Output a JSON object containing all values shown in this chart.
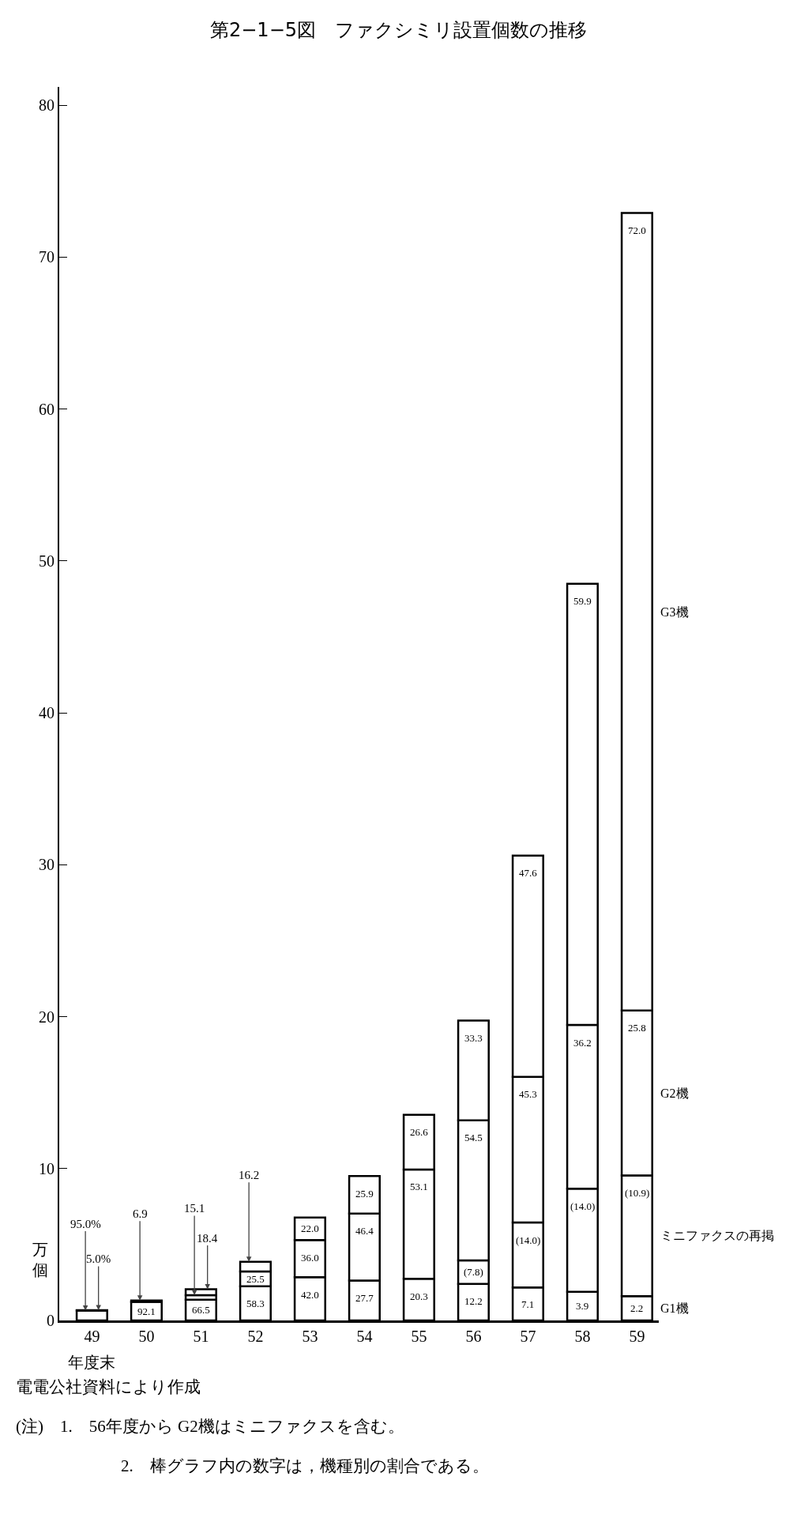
{
  "chart_data": {
    "type": "bar",
    "title": "第2−1−5図　ファクシミリ設置個数の推移",
    "xlabel": "年度末",
    "ylabel": "万個",
    "categories": [
      "49",
      "50",
      "51",
      "52",
      "53",
      "54",
      "55",
      "56",
      "57",
      "58",
      "59"
    ],
    "stacked": true,
    "ylim": [
      0,
      81.2
    ],
    "yticks": [
      0,
      10,
      20,
      30,
      40,
      50,
      60,
      70,
      80
    ],
    "series": [
      {
        "name": "G1機",
        "color": "#ffffff",
        "values": [
          0.65,
          1.22,
          1.36,
          2.25,
          2.85,
          2.63,
          2.75,
          2.41,
          2.17,
          1.89,
          1.6
        ]
      },
      {
        "name": "ミニファクスの再掲",
        "color": "#ffffff",
        "values": [
          null,
          null,
          null,
          null,
          null,
          null,
          null,
          1.54,
          4.28,
          6.79,
          7.95
        ]
      },
      {
        "name": "G2機",
        "color": "#ffffff",
        "values": [
          0.03,
          0.09,
          0.31,
          0.98,
          2.44,
          4.41,
          7.19,
          9.22,
          9.58,
          10.77,
          10.86
        ]
      },
      {
        "name": "G3機",
        "color": "#ffffff",
        "values": [
          null,
          null,
          0.38,
          0.63,
          1.49,
          2.46,
          3.6,
          6.57,
          14.57,
          29.05,
          52.49
        ]
      }
    ],
    "annotations": [
      {
        "text": "95.0%",
        "x": "49",
        "y": 0.65
      },
      {
        "text": "5.0%",
        "x": "49",
        "y": 0.68
      },
      {
        "text": "92.1",
        "x": "50",
        "y": 1.22
      },
      {
        "text": "6.9",
        "x": "50",
        "y": 1.31
      },
      {
        "text": "66.5",
        "x": "51",
        "y": 1.36
      },
      {
        "text": "15.1",
        "x": "51",
        "y": 1.67
      },
      {
        "text": "18.4",
        "x": "51",
        "y": 2.05
      },
      {
        "text": "58.3",
        "x": "52",
        "y": 2.25
      },
      {
        "text": "25.5",
        "x": "52",
        "y": 3.23
      },
      {
        "text": "16.2",
        "x": "52",
        "y": 3.86
      },
      {
        "text": "42.0",
        "x": "53",
        "y": 2.85
      },
      {
        "text": "36.0",
        "x": "53",
        "y": 5.29
      },
      {
        "text": "22.0",
        "x": "53",
        "y": 6.78
      },
      {
        "text": "27.7",
        "x": "54",
        "y": 2.63
      },
      {
        "text": "46.4",
        "x": "54",
        "y": 7.04
      },
      {
        "text": "25.9",
        "x": "54",
        "y": 9.5
      },
      {
        "text": "20.3",
        "x": "55",
        "y": 2.75
      },
      {
        "text": "53.1",
        "x": "55",
        "y": 9.94
      },
      {
        "text": "26.6",
        "x": "55",
        "y": 13.54
      },
      {
        "text": "12.2",
        "x": "56",
        "y": 2.41
      },
      {
        "text": "(7.8)",
        "x": "56",
        "y": 3.95
      },
      {
        "text": "54.5",
        "x": "56",
        "y": 13.17
      },
      {
        "text": "33.3",
        "x": "56",
        "y": 19.74
      },
      {
        "text": "7.1",
        "x": "57",
        "y": 2.17
      },
      {
        "text": "(14.0)",
        "x": "57",
        "y": 6.45
      },
      {
        "text": "45.3",
        "x": "57",
        "y": 16.03
      },
      {
        "text": "47.6",
        "x": "57",
        "y": 30.6
      },
      {
        "text": "3.9",
        "x": "58",
        "y": 1.89
      },
      {
        "text": "(14.0)",
        "x": "58",
        "y": 8.68
      },
      {
        "text": "36.2",
        "x": "58",
        "y": 19.45
      },
      {
        "text": "59.9",
        "x": "58",
        "y": 48.5
      },
      {
        "text": "2.2",
        "x": "59",
        "y": 1.6
      },
      {
        "text": "(10.9)",
        "x": "59",
        "y": 9.55
      },
      {
        "text": "25.8",
        "x": "59",
        "y": 20.41
      },
      {
        "text": "72.0",
        "x": "59",
        "y": 72.9
      },
      "電電公社資料により作成",
      "(注)　1.　56年度から G2機はミニファクスを含む。",
      "2.　棒グラフ内の数字は，機種別の割合である。"
    ]
  }
}
